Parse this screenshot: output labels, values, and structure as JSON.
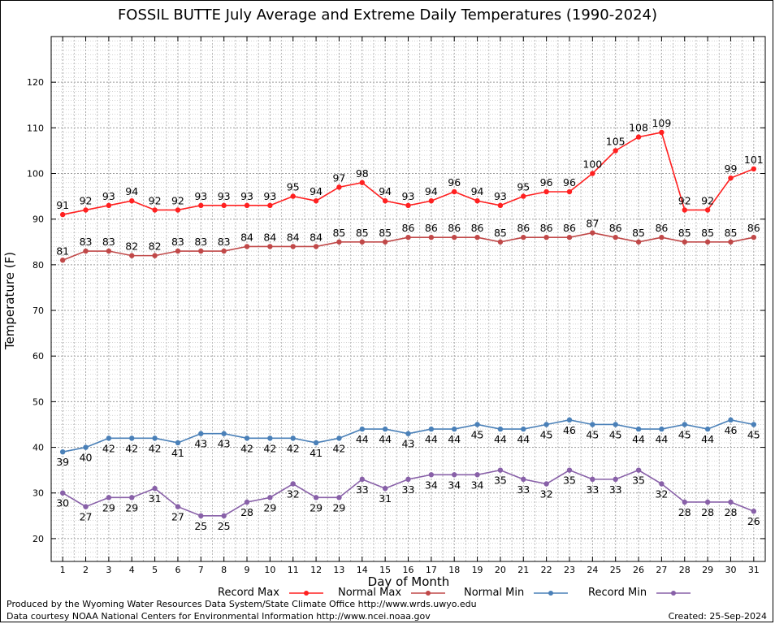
{
  "chart_data": {
    "type": "line",
    "title": "FOSSIL BUTTE July Average and Extreme Daily Temperatures (1990-2024)",
    "xlabel": "Day of Month",
    "ylabel": "Temperature (F)",
    "x": [
      1,
      2,
      3,
      4,
      5,
      6,
      7,
      8,
      9,
      10,
      11,
      12,
      13,
      14,
      15,
      16,
      17,
      18,
      19,
      20,
      21,
      22,
      23,
      24,
      25,
      26,
      27,
      28,
      29,
      30,
      31
    ],
    "xlim": [
      0.5,
      31.5
    ],
    "ylim": [
      15,
      130
    ],
    "yticks": [
      20,
      30,
      40,
      50,
      60,
      70,
      80,
      90,
      100,
      110,
      120
    ],
    "grid": true,
    "legend_position": "bottom",
    "series": [
      {
        "name": "Record Max",
        "color": "#ff2020",
        "label_position": "above",
        "values": [
          91,
          92,
          93,
          94,
          92,
          92,
          93,
          93,
          93,
          93,
          95,
          94,
          97,
          98,
          94,
          93,
          94,
          96,
          94,
          93,
          95,
          96,
          96,
          100,
          105,
          108,
          109,
          92,
          92,
          99,
          101
        ]
      },
      {
        "name": "Normal Max",
        "color": "#c04848",
        "label_position": "above",
        "values": [
          81,
          83,
          83,
          82,
          82,
          83,
          83,
          83,
          84,
          84,
          84,
          84,
          85,
          85,
          85,
          86,
          86,
          86,
          86,
          85,
          86,
          86,
          86,
          87,
          86,
          85,
          86,
          85,
          85,
          85,
          86
        ]
      },
      {
        "name": "Normal Min",
        "color": "#4a80b8",
        "label_position": "below",
        "values": [
          39,
          40,
          42,
          42,
          42,
          41,
          43,
          43,
          42,
          42,
          42,
          41,
          42,
          44,
          44,
          43,
          44,
          44,
          45,
          44,
          44,
          45,
          46,
          45,
          45,
          44,
          44,
          45,
          44,
          46,
          45
        ]
      },
      {
        "name": "Record Min",
        "color": "#8860a8",
        "label_position": "below",
        "values": [
          30,
          27,
          29,
          29,
          31,
          27,
          25,
          25,
          28,
          29,
          32,
          29,
          29,
          33,
          31,
          33,
          34,
          34,
          34,
          35,
          33,
          32,
          35,
          33,
          33,
          35,
          32,
          28,
          28,
          28,
          26
        ]
      }
    ]
  },
  "footer": {
    "produced_by": "Produced by the Wyoming Water Resources Data System/State Climate Office http://www.wrds.uwyo.edu",
    "data_courtesy": "Data courtesy NOAA National Centers for Environmental Information http://www.ncei.noaa.gov",
    "created": "Created:  25-Sep-2024"
  }
}
